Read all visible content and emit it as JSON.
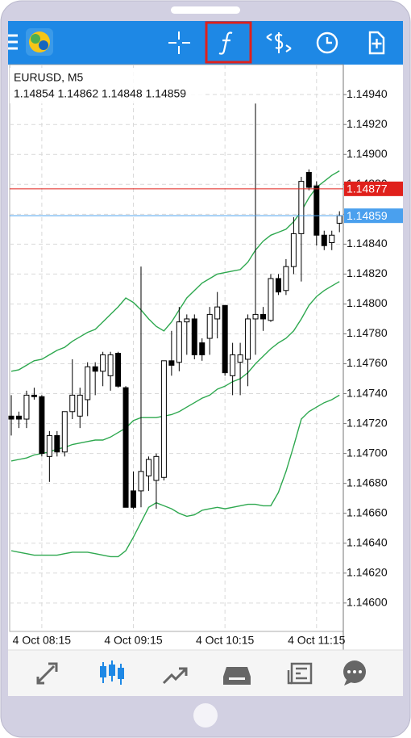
{
  "chart_data": {
    "type": "candlestick",
    "title": "EURUSD, M5",
    "ohlc_readout": "1.14854 1.14862 1.14848 1.14859",
    "categories": [
      null,
      null,
      null,
      null,
      "4 Oct 08:15",
      null,
      null,
      null,
      null,
      null,
      null,
      null,
      null,
      null,
      null,
      null,
      "4 Oct 09:15",
      null,
      null,
      null,
      null,
      null,
      null,
      null,
      null,
      null,
      null,
      null,
      "4 Oct 10:15",
      null,
      null,
      null,
      null,
      null,
      null,
      null,
      null,
      null,
      null,
      null,
      "4 Oct 11:15",
      null,
      null,
      null
    ],
    "ohlc": [
      [
        1.14725,
        1.14739,
        1.14712,
        1.14723
      ],
      [
        1.14725,
        1.14728,
        1.14717,
        1.14723
      ],
      [
        1.14723,
        1.14742,
        1.14717,
        1.14739
      ],
      [
        1.14739,
        1.14744,
        1.14736,
        1.14738
      ],
      [
        1.14738,
        1.14739,
        1.14698,
        1.147
      ],
      [
        1.14698,
        1.14715,
        1.14681,
        1.14712
      ],
      [
        1.14712,
        1.14715,
        1.14698,
        1.14701
      ],
      [
        1.14701,
        1.14728,
        1.14698,
        1.14728
      ],
      [
        1.14728,
        1.14763,
        1.14723,
        1.14739
      ],
      [
        1.14725,
        1.14744,
        1.14717,
        1.14739
      ],
      [
        1.14736,
        1.14761,
        1.14725,
        1.14758
      ],
      [
        1.14758,
        1.14761,
        1.14739,
        1.14755
      ],
      [
        1.14755,
        1.14768,
        1.14745,
        1.14766
      ],
      [
        1.14752,
        1.14768,
        1.14742,
        1.14766
      ],
      [
        1.14767,
        1.14768,
        1.14744,
        1.14745
      ],
      [
        1.14744,
        1.14745,
        1.14664,
        1.14664
      ],
      [
        1.14675,
        1.14688,
        1.14663,
        1.14664
      ],
      [
        1.14675,
        1.14825,
        1.14664,
        1.14688
      ],
      [
        1.14685,
        1.14698,
        1.14675,
        1.14696
      ],
      [
        1.14682,
        1.147,
        1.14663,
        1.14698
      ],
      [
        1.14684,
        1.14762,
        1.14682,
        1.14762
      ],
      [
        1.14762,
        1.14782,
        1.14752,
        1.14759
      ],
      [
        1.14761,
        1.14798,
        1.14755,
        1.14788
      ],
      [
        1.14788,
        1.14793,
        1.14766,
        1.1479
      ],
      [
        1.1479,
        1.14793,
        1.14763,
        1.14766
      ],
      [
        1.14774,
        1.14777,
        1.14762,
        1.14766
      ],
      [
        1.14777,
        1.14798,
        1.14766,
        1.14793
      ],
      [
        1.1479,
        1.14808,
        1.14777,
        1.14798
      ],
      [
        1.14799,
        1.14799,
        1.14752,
        1.14754
      ],
      [
        1.14752,
        1.14774,
        1.14739,
        1.14766
      ],
      [
        1.14761,
        1.14774,
        1.14739,
        1.14766
      ],
      [
        1.14763,
        1.14793,
        1.14745,
        1.1479
      ],
      [
        1.1479,
        1.14934,
        1.14766,
        1.14793
      ],
      [
        1.14793,
        1.14798,
        1.14782,
        1.1479
      ],
      [
        1.14789,
        1.1482,
        1.14788,
        1.14817
      ],
      [
        1.14817,
        1.1482,
        1.14806,
        1.14808
      ],
      [
        1.14809,
        1.1483,
        1.14806,
        1.14825
      ],
      [
        1.14825,
        1.14858,
        1.1482,
        1.14847
      ],
      [
        1.14847,
        1.14885,
        1.14815,
        1.14882
      ],
      [
        1.14888,
        1.1489,
        1.14876,
        1.14878
      ],
      [
        1.14879,
        1.14882,
        1.14839,
        1.14846
      ],
      [
        1.14846,
        1.14849,
        1.14836,
        1.14839
      ],
      [
        1.14841,
        1.14849,
        1.14836,
        1.14846
      ],
      [
        1.14854,
        1.14862,
        1.14848,
        1.14859
      ]
    ],
    "up_color": "#ffffff",
    "down_color": "#000000",
    "series": [
      {
        "color": "#2ea84f",
        "values": [
          1.14755,
          1.14756,
          1.14759,
          1.14762,
          1.14763,
          1.14766,
          1.14769,
          1.14771,
          1.14775,
          1.14778,
          1.14781,
          1.14783,
          1.14788,
          1.14793,
          1.14798,
          1.14804,
          1.14801,
          1.14796,
          1.1479,
          1.14785,
          1.14782,
          1.14788,
          1.14796,
          1.14804,
          1.14809,
          1.14814,
          1.14817,
          1.1482,
          1.14821,
          1.14822,
          1.14823,
          1.14828,
          1.14836,
          1.14842,
          1.14846,
          1.14848,
          1.1485,
          1.14855,
          1.14862,
          1.14871,
          1.14878,
          1.14882,
          1.14886,
          1.14889
        ]
      },
      {
        "color": "#2ea84f",
        "values": [
          1.14695,
          1.14696,
          1.14697,
          1.14699,
          1.147,
          1.14701,
          1.14703,
          1.14704,
          1.14706,
          1.14707,
          1.14708,
          1.14709,
          1.14709,
          1.14711,
          1.14714,
          1.14717,
          1.14722,
          1.14724,
          1.14724,
          1.14724,
          1.14725,
          1.14726,
          1.14728,
          1.14731,
          1.14734,
          1.14737,
          1.14739,
          1.14743,
          1.14745,
          1.14748,
          1.1475,
          1.14754,
          1.1476,
          1.14765,
          1.1477,
          1.14774,
          1.14777,
          1.14782,
          1.1479,
          1.14799,
          1.14805,
          1.14809,
          1.14812,
          1.14815
        ]
      },
      {
        "color": "#2ea84f",
        "values": [
          1.14635,
          1.14634,
          1.14633,
          1.14632,
          1.14632,
          1.14632,
          1.14632,
          1.14633,
          1.14634,
          1.14634,
          1.14634,
          1.14633,
          1.14632,
          1.14631,
          1.14631,
          1.14635,
          1.14644,
          1.14654,
          1.14664,
          1.14667,
          1.14665,
          1.14663,
          1.1466,
          1.14658,
          1.14659,
          1.14662,
          1.14663,
          1.14664,
          1.14663,
          1.14664,
          1.14665,
          1.14666,
          1.14666,
          1.14665,
          1.14665,
          1.14674,
          1.14688,
          1.14705,
          1.14723,
          1.14728,
          1.14731,
          1.14734,
          1.14736,
          1.14739
        ]
      }
    ],
    "price_lines": [
      {
        "value": 1.14877,
        "color": "#e0201b"
      },
      {
        "value": 1.14859,
        "color": "#4aa0ee"
      }
    ],
    "ylim": [
      1.14581,
      1.14959
    ],
    "yticks": [
      {
        "value": 1.146,
        "label": "1.14600"
      },
      {
        "value": 1.1462,
        "label": "1.14620"
      },
      {
        "value": 1.1464,
        "label": "1.14640"
      },
      {
        "value": 1.1466,
        "label": "1.14660"
      },
      {
        "value": 1.1468,
        "label": "1.14680"
      },
      {
        "value": 1.147,
        "label": "1.14700"
      },
      {
        "value": 1.1472,
        "label": "1.14720"
      },
      {
        "value": 1.1474,
        "label": "1.14740"
      },
      {
        "value": 1.1476,
        "label": "1.14760"
      },
      {
        "value": 1.1478,
        "label": "1.14780"
      },
      {
        "value": 1.148,
        "label": "1.14800"
      },
      {
        "value": 1.1482,
        "label": "1.14820"
      },
      {
        "value": 1.1484,
        "label": "1.14840"
      },
      {
        "value": 1.1486,
        "label": "1.14860"
      },
      {
        "value": 1.1488,
        "label": "1.14880"
      },
      {
        "value": 1.149,
        "label": "1.14900"
      },
      {
        "value": 1.1492,
        "label": "1.14920"
      },
      {
        "value": 1.1494,
        "label": "1.14940"
      }
    ],
    "grid": true
  }
}
